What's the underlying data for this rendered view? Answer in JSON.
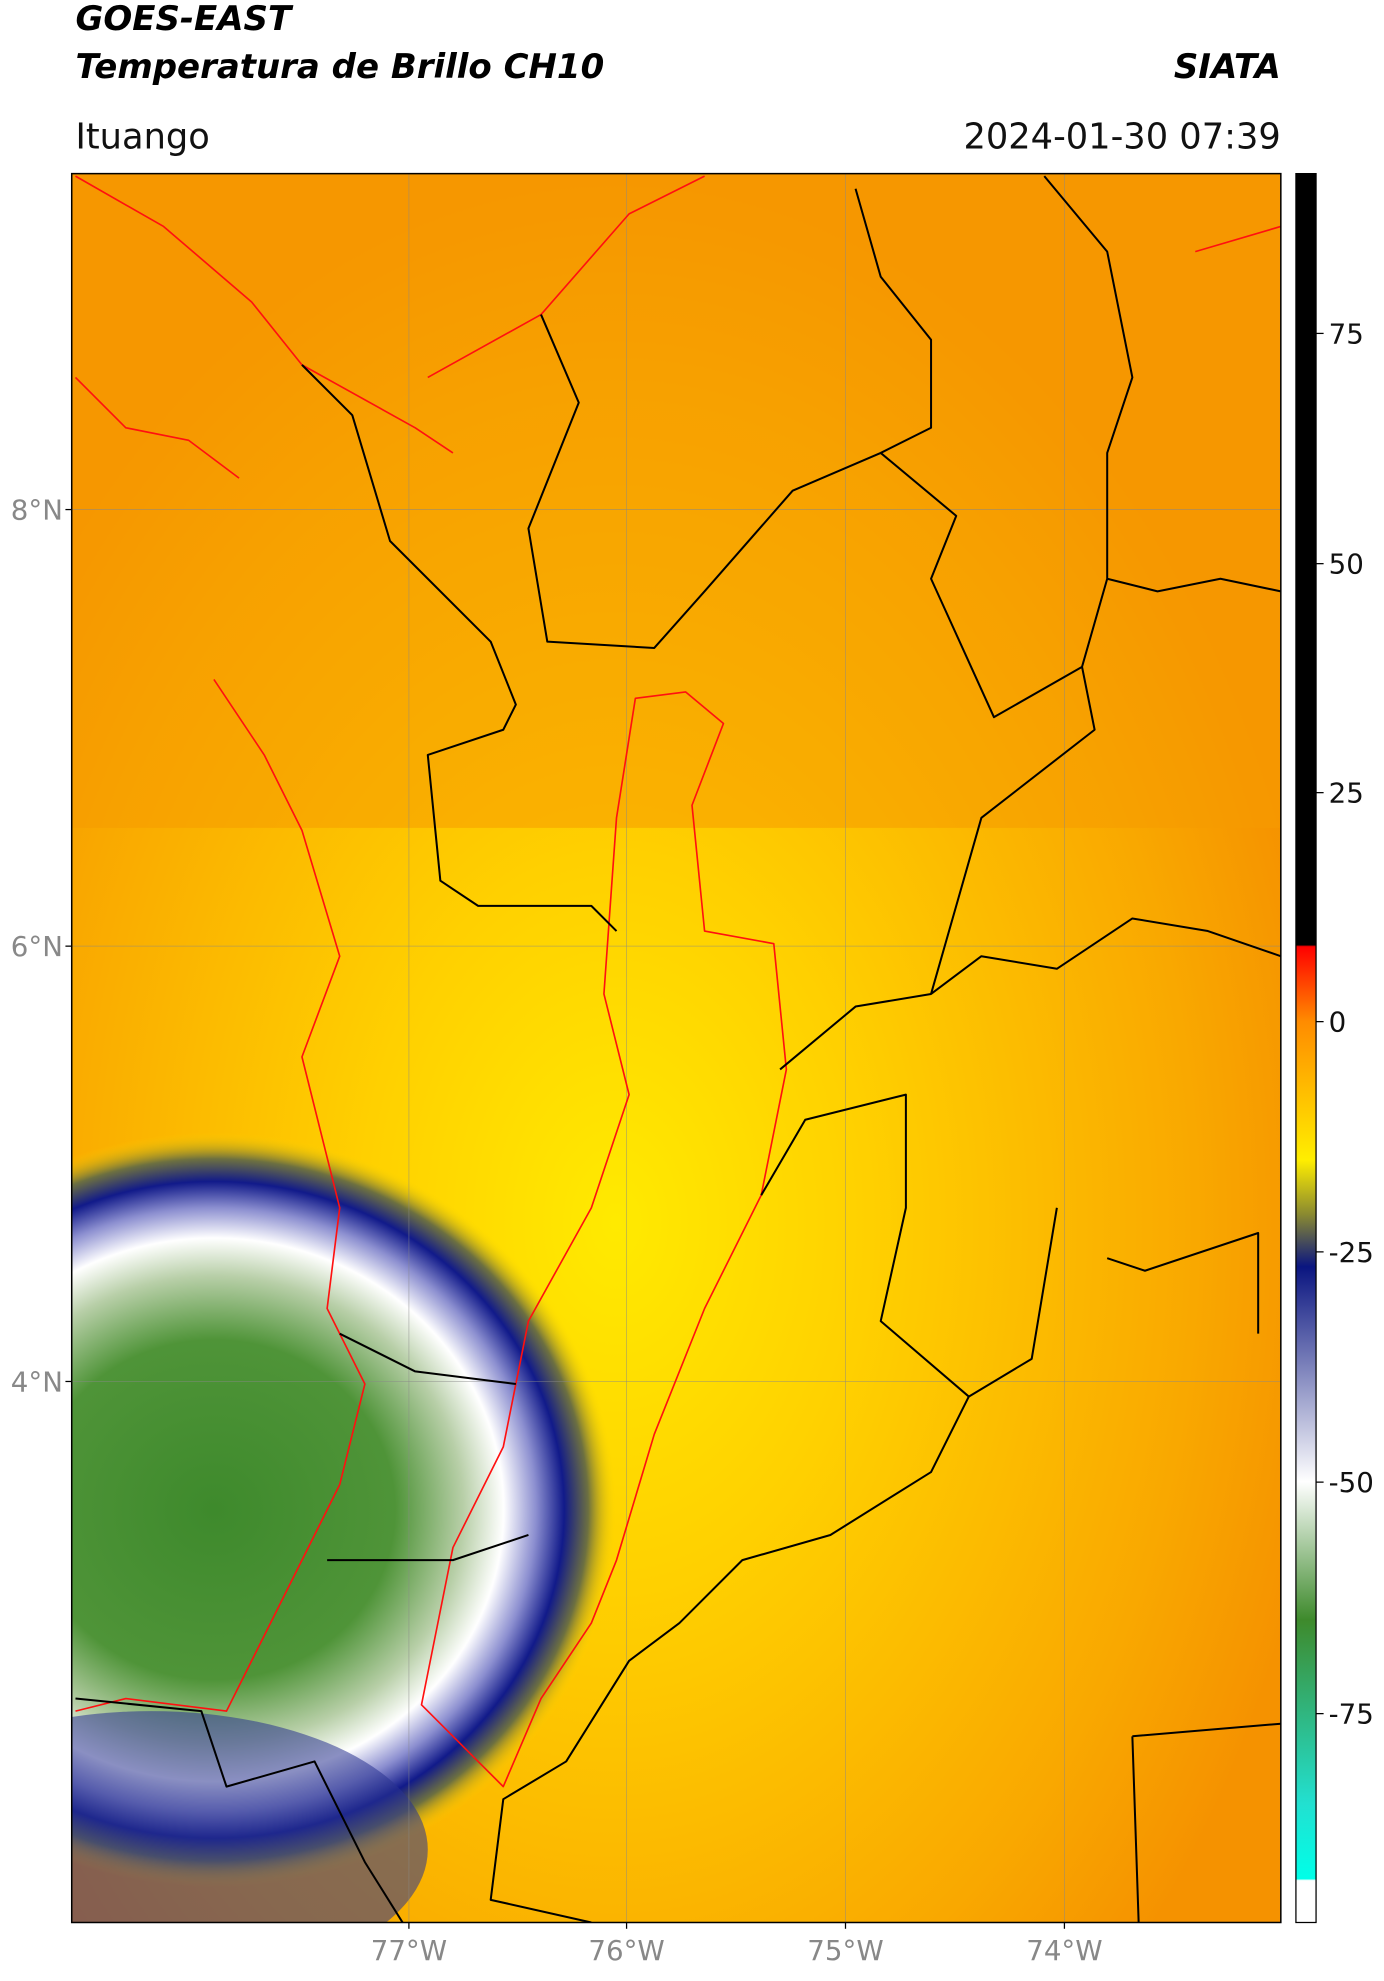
{
  "header": {
    "title": "GOES-EAST",
    "subtitle": "Temperatura de Brillo CH10",
    "source": "SIATA",
    "location": "Ituango",
    "datetime": "2024-01-30 07:39"
  },
  "map": {
    "lat_labels": [
      "8°N",
      "6°N",
      "4°N"
    ],
    "lon_labels": [
      "77°W",
      "76°W",
      "75°W",
      "74°W"
    ]
  },
  "colorbar": {
    "labels": [
      "75",
      "50",
      "25",
      "0",
      "-25",
      "-50",
      "-75"
    ]
  }
}
